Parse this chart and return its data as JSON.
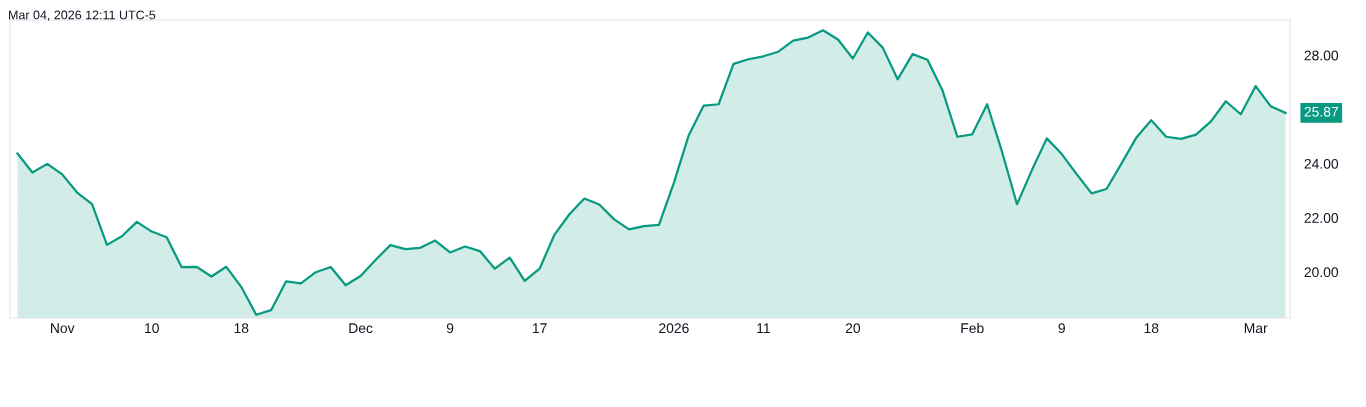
{
  "chart_data": {
    "type": "area",
    "annotations": [
      "Mar 04, 2026 12:11 UTC-5",
      "25.87"
    ],
    "categories": [
      null,
      null,
      null,
      "Nov",
      null,
      null,
      null,
      null,
      null,
      "10",
      null,
      null,
      null,
      null,
      null,
      "18",
      null,
      null,
      null,
      null,
      null,
      null,
      null,
      "Dec",
      null,
      null,
      null,
      null,
      null,
      "9",
      null,
      null,
      null,
      null,
      null,
      "17",
      null,
      null,
      null,
      null,
      null,
      null,
      null,
      null,
      "2026",
      null,
      null,
      null,
      null,
      null,
      "11",
      null,
      null,
      null,
      null,
      null,
      "20",
      null,
      null,
      null,
      null,
      null,
      null,
      null,
      "Feb",
      null,
      null,
      null,
      null,
      null,
      "9",
      null,
      null,
      null,
      null,
      null,
      "18",
      null,
      null,
      null,
      null,
      null,
      null,
      "Mar",
      null,
      null
    ],
    "series": [
      {
        "color": "#089981",
        "values": [
          24.37,
          23.67,
          23.99,
          23.6,
          22.93,
          22.5,
          21.0,
          21.32,
          21.85,
          21.49,
          21.28,
          20.18,
          20.19,
          19.83,
          20.19,
          19.45,
          18.42,
          18.59,
          19.65,
          19.58,
          19.99,
          20.18,
          19.51,
          19.85,
          20.44,
          20.99,
          20.84,
          20.89,
          21.16,
          20.72,
          20.94,
          20.77,
          20.12,
          20.53,
          19.67,
          20.12,
          21.38,
          22.13,
          22.71,
          22.49,
          21.94,
          21.57,
          21.69,
          21.74,
          23.29,
          25.05,
          26.14,
          26.19,
          27.68,
          27.85,
          27.96,
          28.13,
          28.54,
          28.65,
          28.92,
          28.58,
          27.88,
          28.84,
          28.28,
          27.11,
          28.04,
          27.83,
          26.71,
          24.99,
          25.08,
          26.19,
          24.43,
          22.5,
          23.76,
          24.93,
          24.35,
          23.61,
          22.9,
          23.06,
          24.0,
          24.96,
          25.6,
          24.99,
          24.91,
          25.07,
          25.56,
          26.3,
          25.82,
          26.86,
          26.12,
          25.87
        ]
      }
    ],
    "ylim": [
      18.3,
      29.3
    ],
    "yticks": [
      {
        "value": 20,
        "label": "20.00"
      },
      {
        "value": 22,
        "label": "22.00"
      },
      {
        "value": 24,
        "label": "24.00"
      },
      {
        "value": 28,
        "label": "28.00"
      }
    ],
    "grid": false,
    "legend": false
  }
}
